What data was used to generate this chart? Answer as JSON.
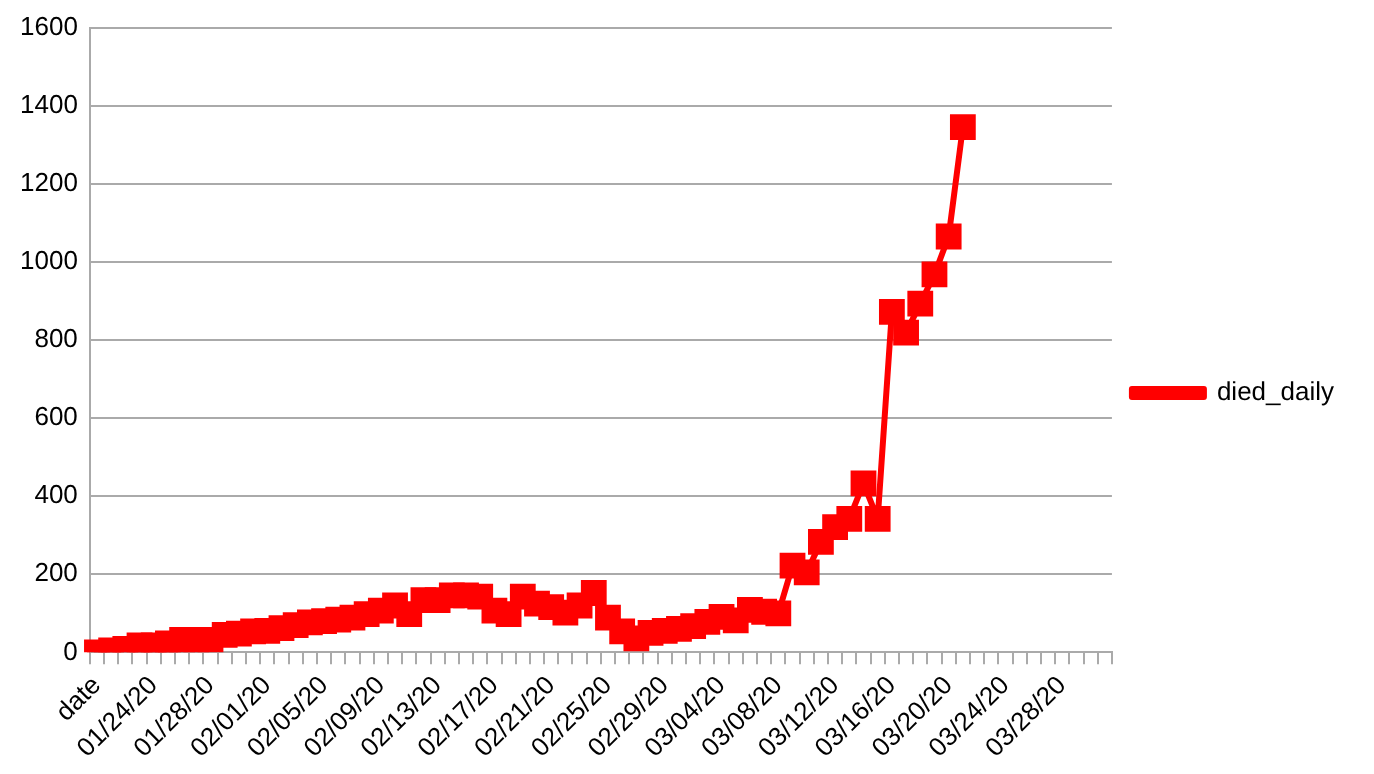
{
  "chart_data": {
    "type": "line",
    "categories": [
      "date",
      null,
      null,
      null,
      "01/24/20",
      null,
      null,
      null,
      "01/28/20",
      null,
      null,
      null,
      "02/01/20",
      null,
      null,
      null,
      "02/05/20",
      null,
      null,
      null,
      "02/09/20",
      null,
      null,
      null,
      "02/13/20",
      null,
      null,
      null,
      "02/17/20",
      null,
      null,
      null,
      "02/21/20",
      null,
      null,
      null,
      "02/25/20",
      null,
      null,
      null,
      "02/29/20",
      null,
      null,
      null,
      "03/04/20",
      null,
      null,
      null,
      "03/08/20",
      null,
      null,
      null,
      "03/12/20",
      null,
      null,
      null,
      "03/16/20",
      null,
      null,
      null,
      "03/20/20",
      null,
      null,
      null,
      "03/24/20",
      null,
      null,
      null,
      "03/28/20",
      null,
      null,
      null
    ],
    "series": [
      {
        "name": "died_daily",
        "color": "#ff0000",
        "values": [
          0,
          5,
          9,
          18,
          18,
          23,
          32,
          32,
          32,
          45,
          48,
          54,
          55,
          62,
          70,
          77,
          80,
          84,
          89,
          98,
          107,
          120,
          98,
          134,
          134,
          146,
          146,
          143,
          107,
          98,
          143,
          125,
          116,
          102,
          120,
          152,
          89,
          54,
          36,
          50,
          55,
          60,
          67,
          78,
          91,
          82,
          109,
          104,
          100,
          222,
          205,
          283,
          321,
          342,
          433,
          342,
          872,
          819,
          893,
          968,
          1065,
          1345,
          null,
          null,
          null,
          null,
          null,
          null,
          null,
          null,
          null,
          null
        ]
      }
    ],
    "ylim": [
      0,
      1600
    ],
    "yticks": [
      0,
      200,
      400,
      600,
      800,
      1000,
      1200,
      1400,
      1600
    ],
    "grid": "y",
    "legend": "right",
    "marker": "square",
    "line_style": "solid"
  }
}
